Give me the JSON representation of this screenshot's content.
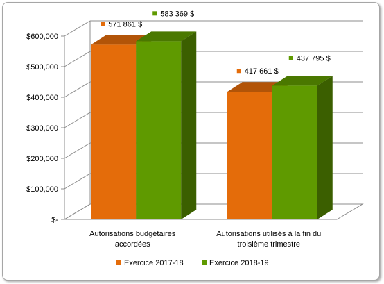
{
  "chart_data": {
    "type": "bar",
    "style": "3d-clustered-column",
    "categories": [
      [
        "Autorisations budgétaires",
        "accordées"
      ],
      [
        "Autorisations utilisés à la fin du",
        "troisième trimestre"
      ]
    ],
    "series": [
      {
        "name": "Exercice 2017-18",
        "color": "#e46c0a",
        "values": [
          571861,
          417661
        ],
        "data_labels": [
          "571 861 $",
          "417 661 $"
        ]
      },
      {
        "name": "Exercice 2018-19",
        "color": "#5f9a00",
        "values": [
          583369,
          437795
        ],
        "data_labels": [
          "583 369 $",
          "437 795 $"
        ]
      }
    ],
    "ylim": [
      0,
      600000
    ],
    "y_ticks": [
      0,
      100000,
      200000,
      300000,
      400000,
      500000,
      600000
    ],
    "y_tick_labels": [
      "$-",
      "$100,000",
      "$200,000",
      "$300,000",
      "$400,000",
      "$500,000",
      "$600,000"
    ],
    "grid": true,
    "legend_position": "bottom",
    "xlabel": "",
    "ylabel": "",
    "title": ""
  }
}
